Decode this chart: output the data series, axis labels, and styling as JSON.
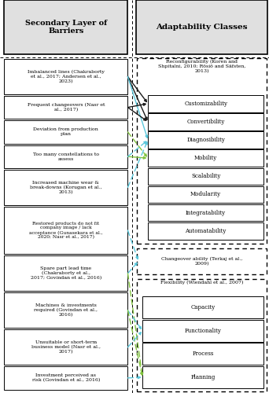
{
  "left_title": "Secondary Layer of\nBarriers",
  "right_title": "Adaptability Classes",
  "barriers": [
    "Imbalanced lines (Chakraborty\net al., 2017; Andersen et al.,\n2023)",
    "Frequent changeovers (Nasr et\nal., 2017)",
    "Deviation from production\nplan",
    "Too many constellations to\nassess",
    "Increased machine wear &\nbreak-downs (Korugan et al.,\n2013)",
    "Restored products do not fit\ncompany image / lack\nacceptance (Gunasekara et al.,\n2020; Nasr et al., 2017)",
    "Spare part lead time\n(Chakraborty et al.,\n2017; Govindan et al., 2016)",
    "Machines & investments\nrequired (Govindan et al.,\n2016)",
    "Unsuitable or short-term\nbusiness model (Nasr et al.,\n2017)",
    "Investment perceived as\nrisk (Govindan et al., 2016)"
  ],
  "barrier_line_counts": [
    3,
    2,
    2,
    2,
    3,
    4,
    3,
    3,
    3,
    2
  ],
  "reconfigurability_label": "Reconfigurability (Koren and\nShpitalni, 2010; Rösiö and Säfsten,\n2013)",
  "reconfig_items": [
    "Customizability",
    "Convertibility",
    "Diagnosibility",
    "Mobility",
    "Scalability",
    "Modularity",
    "Integratability",
    "Automatability"
  ],
  "changeover_label": "Changeover ability (Terkaj et al.,\n2009)",
  "flexibility_label": "Flexibility (Wiendahl et al., 2007)",
  "flexibility_items": [
    "Capacity",
    "Functionality",
    "Process",
    "Planning"
  ],
  "arrows_def": [
    [
      0,
      "reconfig",
      0,
      "black",
      "solid"
    ],
    [
      0,
      "reconfig",
      1,
      "black",
      "solid"
    ],
    [
      0,
      "reconfig",
      2,
      "blue",
      "solid"
    ],
    [
      1,
      "reconfig",
      0,
      "black",
      "solid"
    ],
    [
      1,
      "reconfig",
      1,
      "black",
      "solid"
    ],
    [
      3,
      "reconfig",
      3,
      "green",
      "solid"
    ],
    [
      4,
      "reconfig",
      2,
      "blue",
      "dashed"
    ],
    [
      5,
      "changeover",
      0,
      "blue",
      "dashed"
    ],
    [
      6,
      "changeover",
      0,
      "blue",
      "dashed"
    ],
    [
      2,
      "reconfig",
      3,
      "green",
      "dashed"
    ],
    [
      3,
      "reconfig",
      2,
      "blue",
      "dashed"
    ],
    [
      6,
      "flexibility",
      3,
      "green",
      "dashed"
    ],
    [
      7,
      "flexibility",
      1,
      "blue",
      "dashed"
    ],
    [
      7,
      "flexibility",
      3,
      "green",
      "dashed"
    ],
    [
      8,
      "flexibility",
      1,
      "blue",
      "dashed"
    ],
    [
      9,
      "flexibility",
      3,
      "blue",
      "dashed"
    ]
  ],
  "color_map": {
    "black": "#1a1a1a",
    "blue": "#5bc8dc",
    "green": "#82c341"
  },
  "bg_header": "#e0e0e0",
  "bg_white": "#ffffff",
  "fig_w": 3.42,
  "fig_h": 5.0,
  "dpi": 100
}
